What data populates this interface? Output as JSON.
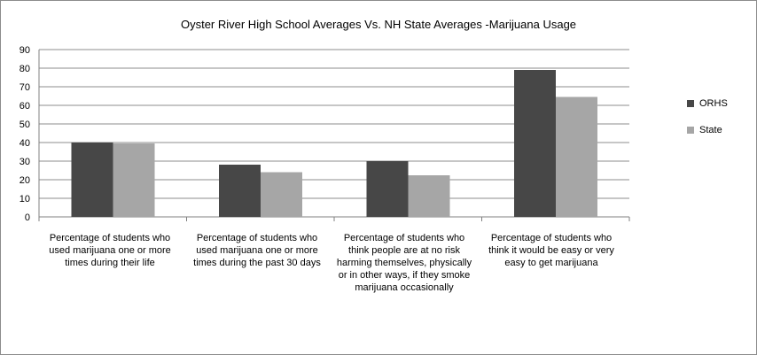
{
  "chart_data": {
    "type": "bar",
    "title": "Oyster River High School Averages Vs. NH State Averages -Marijuana Usage",
    "categories": [
      "Percentage of students who used marijuana  one or more times during their life",
      "Percentage of students who used marijuana  one or more times during the past 30 days",
      "Percentage of students who think people are at no risk harming themselves, physically or in other ways,  if they smoke  marijuana occasionally",
      "Percentage of students who think it would be easy or very easy to get marijuana"
    ],
    "series": [
      {
        "name": "ORHS",
        "color": "#474747",
        "values": [
          40,
          28,
          30,
          79
        ]
      },
      {
        "name": "State",
        "color": "#a6a6a6",
        "values": [
          39.5,
          24,
          22.5,
          64.5
        ]
      }
    ],
    "ylim": [
      0,
      90
    ],
    "yticks": [
      0,
      10,
      20,
      30,
      40,
      50,
      60,
      70,
      80,
      90
    ],
    "grid": true,
    "legend": "right"
  }
}
